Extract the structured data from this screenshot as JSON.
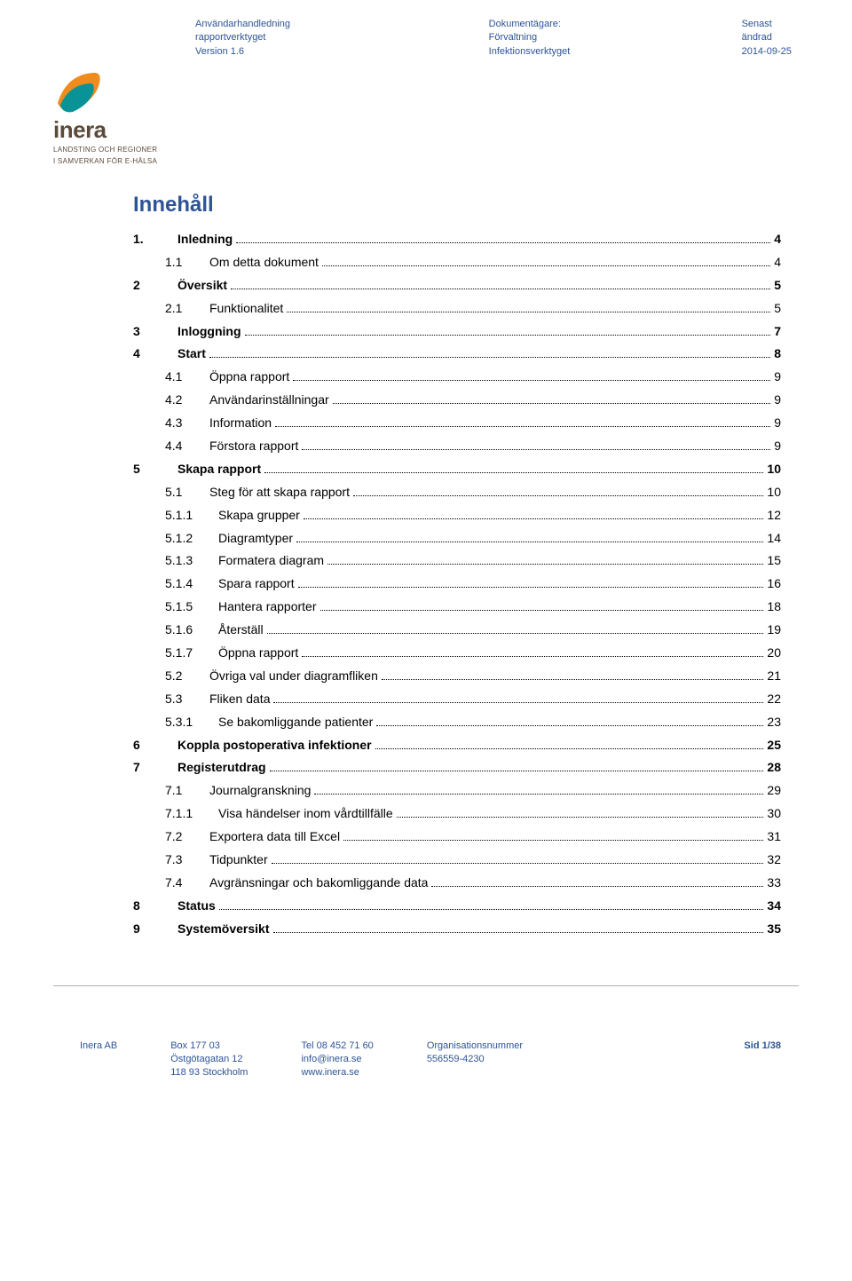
{
  "header": {
    "left": {
      "l1": "Användarhandledning rapportverktyget",
      "l2": "Version 1.6"
    },
    "mid": {
      "l1": "Dokumentägare: Förvaltning",
      "l2": "Infektionsverktyget"
    },
    "right": {
      "l1": "Senast ändrad",
      "l2": "2014-09-25"
    }
  },
  "logo": {
    "brand": "inera",
    "sub1": "LANDSTING OCH REGIONER",
    "sub2": "I SAMVERKAN FÖR E-HÄLSA",
    "colors": {
      "orange": "#f08c1e",
      "teal": "#0a9396"
    }
  },
  "toc_title": "Innehåll",
  "toc": [
    {
      "num": "1.",
      "label": "Inledning",
      "page": "4",
      "level": 1
    },
    {
      "num": "1.1",
      "label": "Om detta dokument",
      "page": "4",
      "level": 2
    },
    {
      "num": "2",
      "label": "Översikt",
      "page": "5",
      "level": 1
    },
    {
      "num": "2.1",
      "label": "Funktionalitet",
      "page": "5",
      "level": 2
    },
    {
      "num": "3",
      "label": "Inloggning",
      "page": "7",
      "level": 1
    },
    {
      "num": "4",
      "label": "Start",
      "page": "8",
      "level": 1
    },
    {
      "num": "4.1",
      "label": "Öppna rapport",
      "page": "9",
      "level": 2
    },
    {
      "num": "4.2",
      "label": "Användarinställningar",
      "page": "9",
      "level": 2
    },
    {
      "num": "4.3",
      "label": "Information",
      "page": "9",
      "level": 2
    },
    {
      "num": "4.4",
      "label": "Förstora rapport",
      "page": "9",
      "level": 2
    },
    {
      "num": "5",
      "label": "Skapa rapport",
      "page": "10",
      "level": 1
    },
    {
      "num": "5.1",
      "label": "Steg för att skapa rapport",
      "page": "10",
      "level": 2
    },
    {
      "num": "5.1.1",
      "label": "Skapa grupper",
      "page": "12",
      "level": 3
    },
    {
      "num": "5.1.2",
      "label": "Diagramtyper",
      "page": "14",
      "level": 3
    },
    {
      "num": "5.1.3",
      "label": "Formatera diagram",
      "page": "15",
      "level": 3
    },
    {
      "num": "5.1.4",
      "label": "Spara rapport",
      "page": "16",
      "level": 3
    },
    {
      "num": "5.1.5",
      "label": "Hantera rapporter",
      "page": "18",
      "level": 3
    },
    {
      "num": "5.1.6",
      "label": "Återställ",
      "page": "19",
      "level": 3
    },
    {
      "num": "5.1.7",
      "label": "Öppna rapport",
      "page": "20",
      "level": 3
    },
    {
      "num": "5.2",
      "label": "Övriga val under diagramfliken",
      "page": "21",
      "level": 2
    },
    {
      "num": "5.3",
      "label": "Fliken data",
      "page": "22",
      "level": 2
    },
    {
      "num": "5.3.1",
      "label": "Se bakomliggande patienter",
      "page": "23",
      "level": 3
    },
    {
      "num": "6",
      "label": "Koppla postoperativa infektioner",
      "page": "25",
      "level": 1
    },
    {
      "num": "7",
      "label": "Registerutdrag",
      "page": "28",
      "level": 1
    },
    {
      "num": "7.1",
      "label": "Journalgranskning",
      "page": "29",
      "level": 2
    },
    {
      "num": "7.1.1",
      "label": "Visa händelser inom vårdtillfälle",
      "page": "30",
      "level": 3
    },
    {
      "num": "7.2",
      "label": "Exportera data till Excel",
      "page": "31",
      "level": 2
    },
    {
      "num": "7.3",
      "label": "Tidpunkter",
      "page": "32",
      "level": 2
    },
    {
      "num": "7.4",
      "label": "Avgränsningar och bakomliggande data",
      "page": "33",
      "level": 2
    },
    {
      "num": "8",
      "label": "Status",
      "page": "34",
      "level": 1
    },
    {
      "num": "9",
      "label": "Systemöversikt",
      "page": "35",
      "level": 1
    }
  ],
  "footer": {
    "c1": {
      "l1": "Inera AB"
    },
    "c2": {
      "l1": "Box 177 03",
      "l2": "Östgötagatan 12",
      "l3": "118 93 Stockholm"
    },
    "c3": {
      "l1": "Tel 08 452 71 60",
      "l2": "info@inera.se",
      "l3": "www.inera.se"
    },
    "c4": {
      "l1": "Organisationsnummer",
      "l2": "556559-4230"
    },
    "page": "Sid 1/38"
  }
}
